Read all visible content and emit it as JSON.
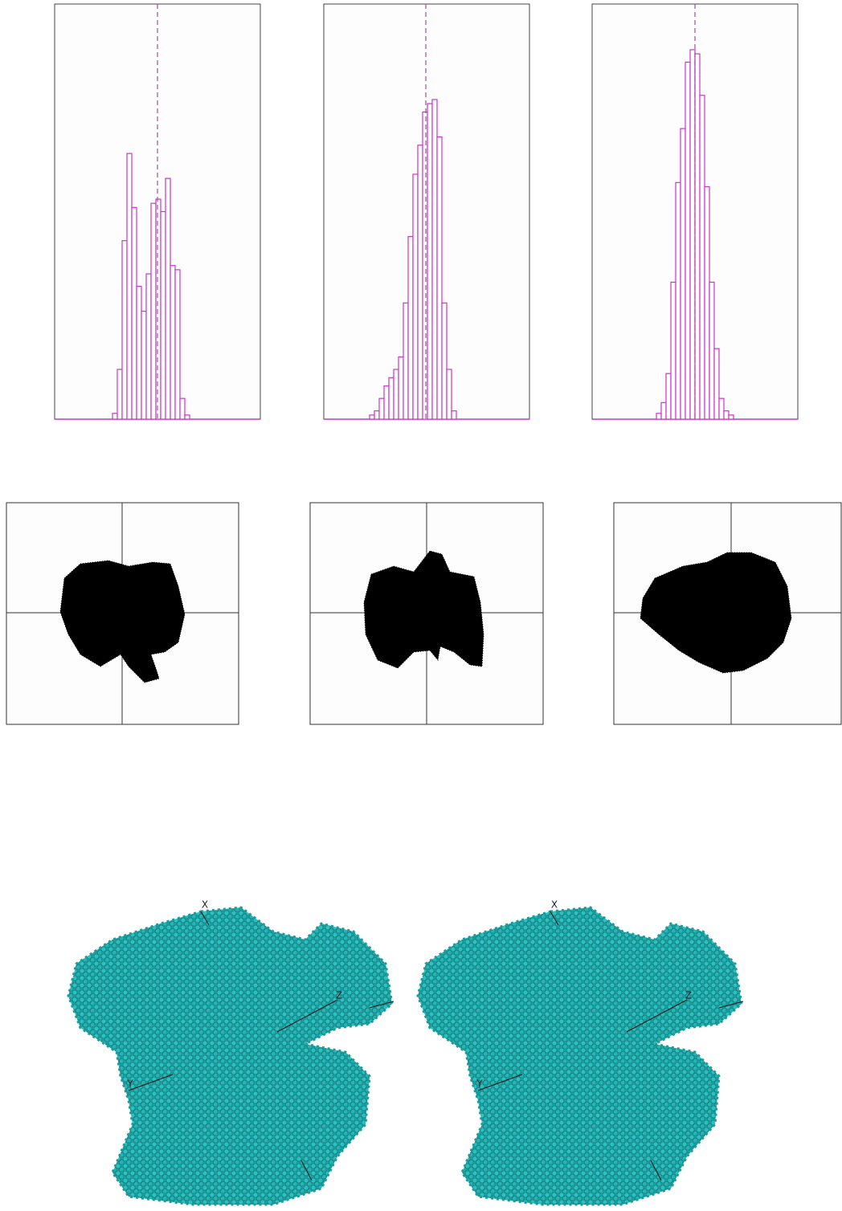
{
  "chart_data": [
    {
      "type": "histogram",
      "color": "#cc33cc",
      "xlim": [
        0,
        256
      ],
      "ylim": [
        0,
        100
      ],
      "reference_line": 128,
      "bins": [
        72,
        78,
        84,
        90,
        96,
        102,
        108,
        114,
        120,
        126,
        132,
        138,
        144,
        150,
        156,
        162,
        168
      ],
      "counts": [
        1.4,
        12,
        43,
        64,
        51,
        32,
        26,
        35,
        52,
        53,
        50,
        58,
        37,
        36,
        5,
        1
      ]
    },
    {
      "type": "histogram",
      "color": "#cc33cc",
      "xlim": [
        0,
        256
      ],
      "ylim": [
        0,
        100
      ],
      "reference_line": 127,
      "bins": [
        57,
        63,
        69,
        75,
        81,
        87,
        93,
        99,
        105,
        111,
        117,
        123,
        129,
        135,
        141,
        147,
        153,
        159,
        165
      ],
      "counts": [
        1,
        2,
        5,
        8,
        10,
        12,
        15,
        28,
        44,
        59,
        66,
        74,
        76,
        77,
        68,
        28,
        12,
        2
      ]
    },
    {
      "type": "histogram",
      "color": "#cc33cc",
      "xlim": [
        0,
        256
      ],
      "ylim": [
        0,
        100
      ],
      "reference_line": 128,
      "bins": [
        80,
        86,
        92,
        98,
        104,
        110,
        116,
        122,
        128,
        134,
        140,
        146,
        152,
        158,
        164,
        170,
        176
      ],
      "counts": [
        1.4,
        4,
        11,
        33,
        57,
        70,
        86,
        89,
        88,
        78,
        56,
        33,
        17,
        5,
        2,
        1
      ]
    }
  ],
  "stereo_views": [
    {
      "axes": [
        "X",
        "Y",
        "Z"
      ]
    },
    {
      "axes": [
        "X",
        "Y",
        "Z"
      ]
    }
  ]
}
